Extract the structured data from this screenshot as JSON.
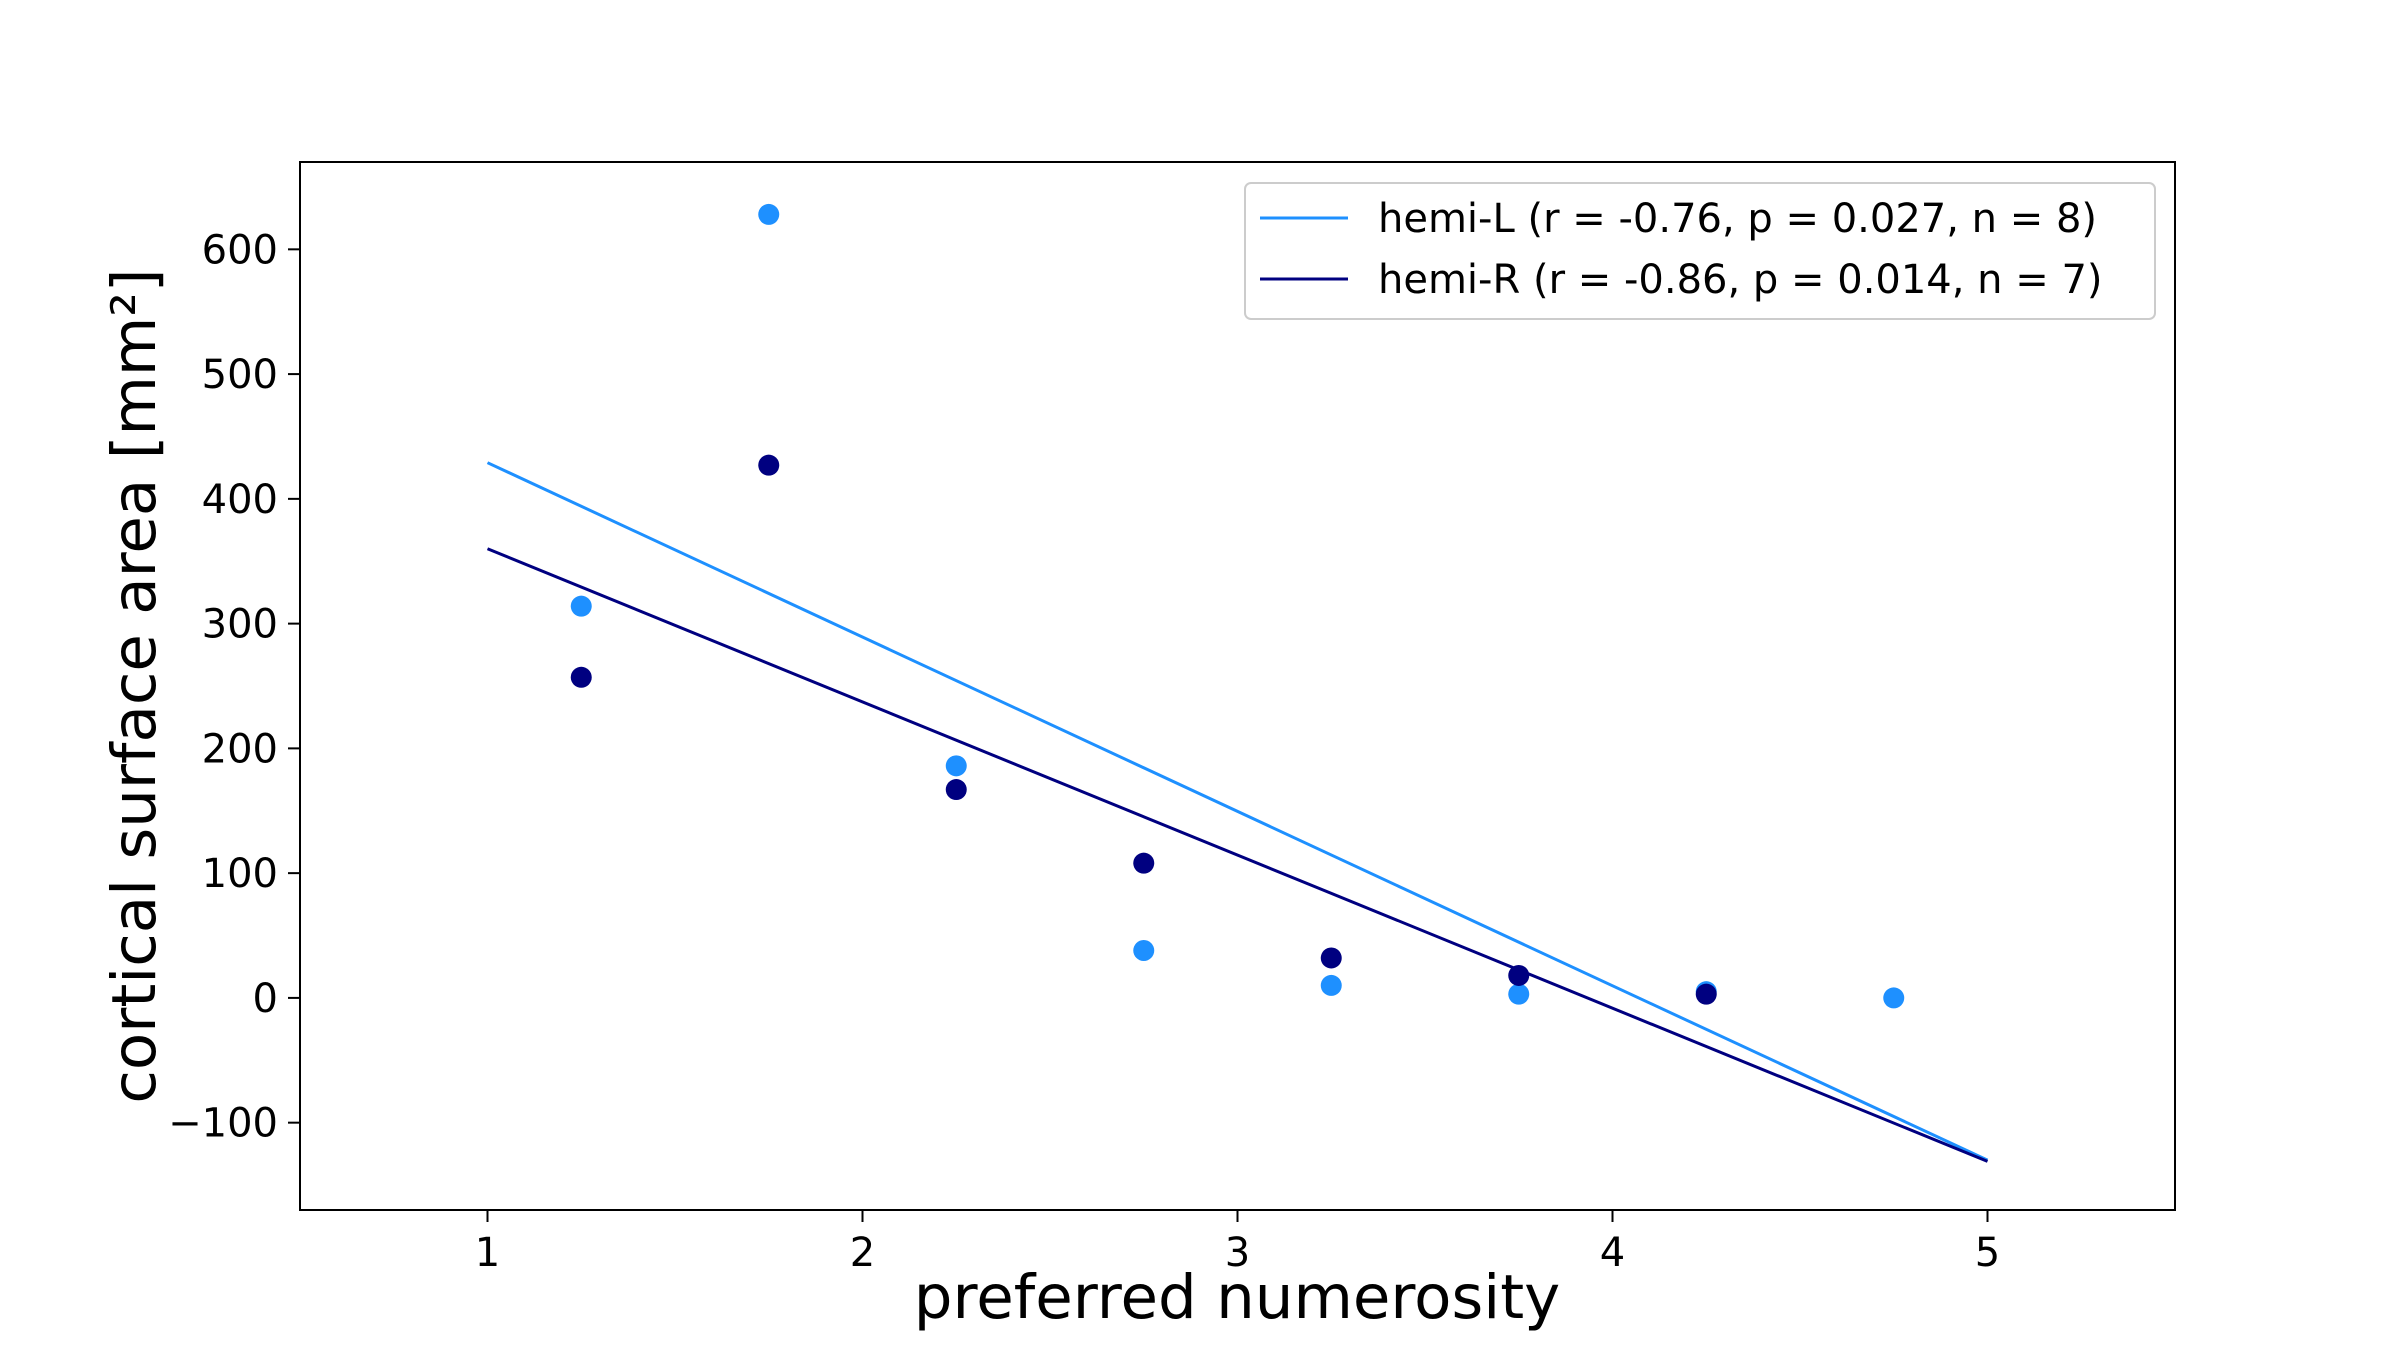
{
  "colors": {
    "hemi_L": "#1E90FF",
    "hemi_R": "#000080",
    "axis": "#000000",
    "background": "#ffffff"
  },
  "chart_data": {
    "type": "scatter",
    "title": "",
    "xlabel": "preferred numerosity",
    "ylabel": "cortical surface area [mm²]",
    "xlim": [
      0.5,
      5.5
    ],
    "ylim": [
      -170,
      670
    ],
    "grid": false,
    "legend_position": "top-right",
    "x_ticks": [
      1,
      2,
      3,
      4,
      5
    ],
    "x_tick_labels": [
      "1",
      "2",
      "3",
      "4",
      "5"
    ],
    "y_ticks": [
      -100,
      0,
      100,
      200,
      300,
      400,
      500,
      600
    ],
    "y_tick_labels": [
      "−100",
      "0",
      "100",
      "200",
      "300",
      "400",
      "500",
      "600"
    ],
    "series": [
      {
        "name": "hemi-L",
        "legend_label": "hemi-L (r = -0.76, p = 0.027, n = 8)",
        "color": "#1E90FF",
        "points": {
          "x": [
            1.25,
            1.75,
            2.25,
            2.75,
            3.25,
            3.75,
            4.25,
            4.75
          ],
          "y": [
            314,
            628,
            186,
            38,
            10,
            3,
            5,
            0
          ]
        },
        "fit_line": {
          "x": [
            1,
            5
          ],
          "y": [
            429,
            -130
          ]
        }
      },
      {
        "name": "hemi-R",
        "legend_label": "hemi-R (r = -0.86, p = 0.014, n = 7)",
        "color": "#000080",
        "points": {
          "x": [
            1.25,
            1.75,
            2.25,
            2.75,
            3.25,
            3.75,
            4.25
          ],
          "y": [
            257,
            427,
            167,
            108,
            32,
            18,
            3
          ]
        },
        "fit_line": {
          "x": [
            1,
            5
          ],
          "y": [
            360,
            -131
          ]
        }
      }
    ]
  }
}
